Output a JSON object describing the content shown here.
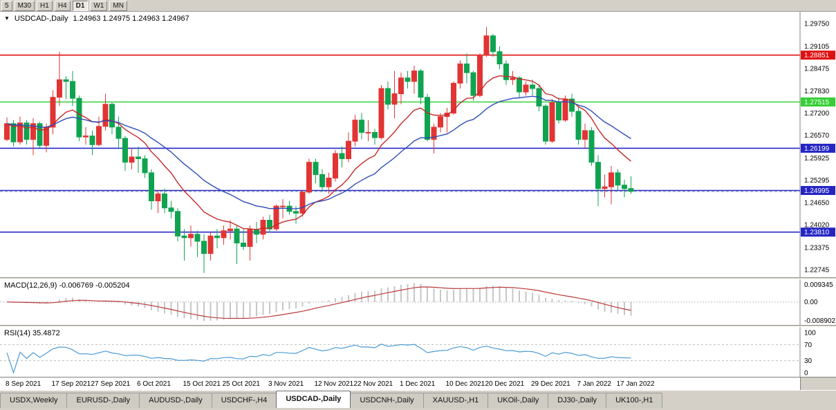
{
  "toolbar": {
    "buttons": [
      "5",
      "M30",
      "H1",
      "H4",
      "D1",
      "W1",
      "MN"
    ],
    "active": "D1"
  },
  "icons": {
    "one_click_arrow": "▼"
  },
  "chart": {
    "symbol_label": "USDCAD-,Daily",
    "ohlc": "1.24963 1.24975 1.24963 1.24967"
  },
  "chart_data": {
    "type": "candlestick",
    "symbol": "USDCAD",
    "timeframe": "Daily",
    "bull_color": "#e23434",
    "bear_color": "#0fa350",
    "price_axis": {
      "min": 1.22525,
      "max": 1.30085,
      "ticks": [
        "1.29750",
        "1.29105",
        "1.28475",
        "1.27830",
        "1.27200",
        "1.26570",
        "1.25925",
        "1.25295",
        "1.24650",
        "1.24020",
        "1.23375",
        "1.22745"
      ]
    },
    "x_axis": {
      "labels": [
        {
          "i": 0,
          "label": "8 Sep 2021"
        },
        {
          "i": 7,
          "label": "17 Sep 2021"
        },
        {
          "i": 13,
          "label": "27 Sep 2021"
        },
        {
          "i": 20,
          "label": "6 Oct 2021"
        },
        {
          "i": 27,
          "label": "15 Oct 2021"
        },
        {
          "i": 33,
          "label": "25 Oct 2021"
        },
        {
          "i": 40,
          "label": "3 Nov 2021"
        },
        {
          "i": 47,
          "label": "12 Nov 2021"
        },
        {
          "i": 53,
          "label": "22 Nov 2021"
        },
        {
          "i": 60,
          "label": "1 Dec 2021"
        },
        {
          "i": 67,
          "label": "10 Dec 2021"
        },
        {
          "i": 73,
          "label": "20 Dec 2021"
        },
        {
          "i": 80,
          "label": "29 Dec 2021"
        },
        {
          "i": 87,
          "label": "7 Jan 2022"
        },
        {
          "i": 93,
          "label": "17 Jan 2022"
        }
      ]
    },
    "candles": [
      [
        1.2645,
        1.2708,
        1.264,
        1.269
      ],
      [
        1.269,
        1.27,
        1.2625,
        1.2638
      ],
      [
        1.2638,
        1.271,
        1.263,
        1.2692
      ],
      [
        1.2692,
        1.27,
        1.263,
        1.2645
      ],
      [
        1.2645,
        1.2706,
        1.26,
        1.269
      ],
      [
        1.269,
        1.2695,
        1.262,
        1.2628
      ],
      [
        1.2628,
        1.269,
        1.2608,
        1.268
      ],
      [
        1.268,
        1.2785,
        1.266,
        1.2765
      ],
      [
        1.2765,
        1.2895,
        1.274,
        1.2815
      ],
      [
        1.2815,
        1.2825,
        1.276,
        1.281
      ],
      [
        1.281,
        1.284,
        1.274,
        1.2762
      ],
      [
        1.2762,
        1.277,
        1.264,
        1.2652
      ],
      [
        1.2652,
        1.268,
        1.263,
        1.2655
      ],
      [
        1.2655,
        1.267,
        1.26,
        1.263
      ],
      [
        1.263,
        1.271,
        1.2625,
        1.2682
      ],
      [
        1.2682,
        1.2775,
        1.267,
        1.2745
      ],
      [
        1.2745,
        1.275,
        1.266,
        1.268
      ],
      [
        1.268,
        1.271,
        1.262,
        1.2648
      ],
      [
        1.2648,
        1.2655,
        1.2555,
        1.258
      ],
      [
        1.258,
        1.262,
        1.256,
        1.2595
      ],
      [
        1.2595,
        1.2625,
        1.255,
        1.259
      ],
      [
        1.259,
        1.26,
        1.2535,
        1.255
      ],
      [
        1.255,
        1.256,
        1.2445,
        1.247
      ],
      [
        1.247,
        1.25,
        1.2435,
        1.249
      ],
      [
        1.249,
        1.2505,
        1.2435,
        1.245
      ],
      [
        1.245,
        1.247,
        1.242,
        1.244
      ],
      [
        1.244,
        1.245,
        1.2355,
        1.237
      ],
      [
        1.237,
        1.239,
        1.23,
        1.2365
      ],
      [
        1.2365,
        1.24,
        1.234,
        1.2375
      ],
      [
        1.2375,
        1.2385,
        1.231,
        1.2355
      ],
      [
        1.2355,
        1.2375,
        1.2265,
        1.232
      ],
      [
        1.232,
        1.238,
        1.23,
        1.237
      ],
      [
        1.237,
        1.239,
        1.2335,
        1.2365
      ],
      [
        1.2365,
        1.24,
        1.2345,
        1.2385
      ],
      [
        1.2385,
        1.2415,
        1.236,
        1.239
      ],
      [
        1.239,
        1.24,
        1.229,
        1.235
      ],
      [
        1.235,
        1.239,
        1.233,
        1.234
      ],
      [
        1.234,
        1.24,
        1.23,
        1.2388
      ],
      [
        1.2388,
        1.241,
        1.235,
        1.2375
      ],
      [
        1.2375,
        1.2425,
        1.236,
        1.2415
      ],
      [
        1.2415,
        1.243,
        1.238,
        1.239
      ],
      [
        1.239,
        1.246,
        1.2385,
        1.2455
      ],
      [
        1.2455,
        1.2475,
        1.242,
        1.2455
      ],
      [
        1.2455,
        1.247,
        1.243,
        1.244
      ],
      [
        1.244,
        1.2455,
        1.2405,
        1.2435
      ],
      [
        1.2435,
        1.25,
        1.2425,
        1.2495
      ],
      [
        1.2495,
        1.259,
        1.249,
        1.258
      ],
      [
        1.258,
        1.259,
        1.252,
        1.2545
      ],
      [
        1.2545,
        1.256,
        1.2495,
        1.251
      ],
      [
        1.251,
        1.255,
        1.249,
        1.2535
      ],
      [
        1.2535,
        1.2615,
        1.2525,
        1.2605
      ],
      [
        1.2605,
        1.2625,
        1.2565,
        1.259
      ],
      [
        1.259,
        1.2665,
        1.258,
        1.264
      ],
      [
        1.264,
        1.2715,
        1.2625,
        1.27
      ],
      [
        1.27,
        1.272,
        1.2645,
        1.2665
      ],
      [
        1.2665,
        1.27,
        1.264,
        1.2665
      ],
      [
        1.2665,
        1.2675,
        1.263,
        1.265
      ],
      [
        1.265,
        1.28,
        1.2645,
        1.279
      ],
      [
        1.279,
        1.281,
        1.273,
        1.2745
      ],
      [
        1.2745,
        1.284,
        1.2705,
        1.2775
      ],
      [
        1.2775,
        1.2835,
        1.2745,
        1.282
      ],
      [
        1.282,
        1.284,
        1.279,
        1.281
      ],
      [
        1.281,
        1.2855,
        1.2775,
        1.284
      ],
      [
        1.284,
        1.2845,
        1.2745,
        1.2765
      ],
      [
        1.2765,
        1.2775,
        1.264,
        1.2645
      ],
      [
        1.2645,
        1.269,
        1.2605,
        1.268
      ],
      [
        1.268,
        1.272,
        1.2665,
        1.271
      ],
      [
        1.271,
        1.2735,
        1.2665,
        1.272
      ],
      [
        1.272,
        1.281,
        1.2715,
        1.2805
      ],
      [
        1.2805,
        1.287,
        1.279,
        1.286
      ],
      [
        1.286,
        1.289,
        1.2805,
        1.2835
      ],
      [
        1.2835,
        1.284,
        1.2755,
        1.277
      ],
      [
        1.277,
        1.289,
        1.2765,
        1.2885
      ],
      [
        1.2885,
        1.2965,
        1.288,
        1.294
      ],
      [
        1.294,
        1.2945,
        1.288,
        1.2895
      ],
      [
        1.2895,
        1.291,
        1.2845,
        1.286
      ],
      [
        1.286,
        1.287,
        1.28,
        1.2815
      ],
      [
        1.2815,
        1.284,
        1.28,
        1.282
      ],
      [
        1.282,
        1.2825,
        1.2765,
        1.278
      ],
      [
        1.278,
        1.281,
        1.277,
        1.28
      ],
      [
        1.28,
        1.2815,
        1.277,
        1.279
      ],
      [
        1.279,
        1.28,
        1.2725,
        1.274
      ],
      [
        1.274,
        1.2745,
        1.263,
        1.264
      ],
      [
        1.264,
        1.276,
        1.2635,
        1.275
      ],
      [
        1.275,
        1.2765,
        1.269,
        1.27
      ],
      [
        1.27,
        1.277,
        1.2695,
        1.276
      ],
      [
        1.276,
        1.2775,
        1.271,
        1.2725
      ],
      [
        1.2725,
        1.274,
        1.263,
        1.2645
      ],
      [
        1.2645,
        1.269,
        1.262,
        1.267
      ],
      [
        1.267,
        1.268,
        1.257,
        1.258
      ],
      [
        1.258,
        1.26,
        1.2455,
        1.2505
      ],
      [
        1.2505,
        1.2545,
        1.248,
        1.251
      ],
      [
        1.251,
        1.257,
        1.246,
        1.255
      ],
      [
        1.255,
        1.256,
        1.25,
        1.2515
      ],
      [
        1.2515,
        1.253,
        1.248,
        1.2505
      ],
      [
        1.2505,
        1.254,
        1.249,
        1.2497
      ]
    ],
    "hlines": [
      {
        "price": 1.28851,
        "label": "1.28851",
        "color": "#e01010"
      },
      {
        "price": 1.27515,
        "label": "1.27515",
        "color": "#35cf35"
      },
      {
        "price": 1.26199,
        "label": "1.26199",
        "color": "#2525c4"
      },
      {
        "price": 1.24995,
        "label": "1.24995",
        "color": "#2525c4"
      },
      {
        "price": 1.2381,
        "label": "1.23810",
        "color": "#2525c4"
      }
    ],
    "bid_line": {
      "price": 1.24967,
      "color": "#7a93bb",
      "style": "dashed"
    },
    "moving_averages": [
      {
        "name": "ma-fast",
        "period": 12,
        "color": "#c62828"
      },
      {
        "name": "ma-slow",
        "period": 26,
        "color": "#2f4bb5"
      }
    ],
    "macd": {
      "fast": 12,
      "slow": 26,
      "signal": 9,
      "histogram_color": "#c6c6c6",
      "signal_color": "#bb3a3a",
      "scale_labels": {
        "top": "0.009345",
        "zero": "0.00",
        "bottom": "-0.008902"
      }
    },
    "rsi": {
      "period": 14,
      "color": "#4a9ad4",
      "levels": [
        70,
        30
      ],
      "scale_labels": [
        "100",
        "70",
        "30",
        "0"
      ]
    }
  },
  "macd_panel": {
    "label": "MACD(12,26,9) -0.006769 -0.005204"
  },
  "rsi_panel": {
    "label": "RSI(14) 35.4872"
  },
  "tabs": [
    {
      "label": "USDX,Weekly",
      "active": false
    },
    {
      "label": "EURUSD-,Daily",
      "active": false
    },
    {
      "label": "AUDUSD-,Daily",
      "active": false
    },
    {
      "label": "USDCHF-,H4",
      "active": false
    },
    {
      "label": "USDCAD-,Daily",
      "active": true
    },
    {
      "label": "USDCNH-,Daily",
      "active": false
    },
    {
      "label": "XAUUSD-,H1",
      "active": false
    },
    {
      "label": "UKOil-,Daily",
      "active": false
    },
    {
      "label": "DJ30-,Daily",
      "active": false
    },
    {
      "label": "UK100-,H1",
      "active": false
    }
  ]
}
